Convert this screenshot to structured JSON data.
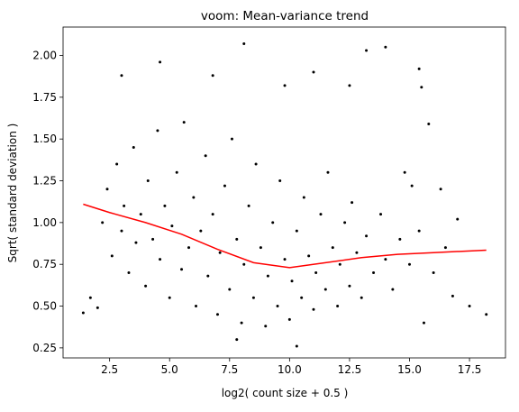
{
  "chart_data": {
    "type": "scatter",
    "title": "voom: Mean-variance trend",
    "x_label": "log2( count size + 0.5 )",
    "y_label": "Sqrt( standard deviation )",
    "xlim": [
      0.56,
      19.0
    ],
    "ylim": [
      0.19,
      2.17
    ],
    "xticks": [
      2.5,
      {
        "value": 5,
        "label": "5.0"
      },
      7.5,
      {
        "value": 10,
        "label": "10.0"
      },
      12.5,
      {
        "value": 15,
        "label": "15.0"
      },
      17.5
    ],
    "yticks": [
      {
        "value": 0.25,
        "label": "0.25"
      },
      {
        "value": 0.5,
        "label": "0.50"
      },
      {
        "value": 0.75,
        "label": "0.75"
      },
      {
        "value": 1,
        "label": "1.00"
      },
      {
        "value": 1.25,
        "label": "1.25"
      },
      {
        "value": 1.5,
        "label": "1.50"
      },
      {
        "value": 1.75,
        "label": "1.75"
      },
      {
        "value": 2,
        "label": "2.00"
      }
    ],
    "series": [
      {
        "mode": "markers",
        "color": "#000000",
        "x": [
          8.1,
          14.0,
          13.2,
          4.6,
          15.4,
          3.0,
          6.8,
          11.0,
          15.5,
          9.8,
          12.5,
          15.8,
          16.3,
          17.0,
          17.5,
          18.2,
          1.4,
          1.7,
          2.0,
          7.8,
          10.3,
          15.6,
          16.8,
          14.8,
          15.1,
          2.2,
          2.4,
          2.6,
          2.8,
          3.0,
          3.1,
          3.3,
          3.5,
          3.6,
          3.8,
          4.0,
          4.1,
          4.3,
          4.5,
          4.6,
          4.8,
          5.0,
          5.1,
          5.3,
          5.5,
          5.6,
          5.8,
          6.0,
          6.1,
          6.3,
          6.5,
          6.6,
          6.8,
          7.0,
          7.1,
          7.3,
          7.5,
          7.6,
          7.8,
          8.0,
          8.1,
          8.3,
          8.5,
          8.6,
          8.8,
          9.0,
          9.1,
          9.3,
          9.5,
          9.6,
          9.8,
          10.0,
          10.1,
          10.3,
          10.5,
          10.6,
          10.8,
          11.0,
          11.1,
          11.3,
          11.5,
          11.6,
          11.8,
          12.0,
          12.1,
          12.3,
          12.5,
          12.6,
          12.8,
          13.0,
          13.2,
          13.5,
          13.8,
          14.0,
          14.3,
          14.6,
          15.0,
          15.4,
          16.0,
          16.5
        ],
        "values": [
          2.07,
          2.05,
          2.03,
          1.96,
          1.92,
          1.88,
          1.88,
          1.9,
          1.81,
          1.82,
          1.82,
          1.59,
          1.2,
          1.02,
          0.5,
          0.45,
          0.46,
          0.55,
          0.49,
          0.3,
          0.26,
          0.4,
          0.56,
          1.3,
          1.22,
          1.0,
          1.2,
          0.8,
          1.35,
          0.95,
          1.1,
          0.7,
          1.45,
          0.88,
          1.05,
          0.62,
          1.25,
          0.9,
          1.55,
          0.78,
          1.1,
          0.55,
          0.98,
          1.3,
          0.72,
          1.6,
          0.85,
          1.15,
          0.5,
          0.95,
          1.4,
          0.68,
          1.05,
          0.45,
          0.82,
          1.22,
          0.6,
          1.5,
          0.9,
          0.4,
          0.75,
          1.1,
          0.55,
          1.35,
          0.85,
          0.38,
          0.68,
          1.0,
          0.5,
          1.25,
          0.78,
          0.42,
          0.65,
          0.95,
          0.55,
          1.15,
          0.8,
          0.48,
          0.7,
          1.05,
          0.6,
          1.3,
          0.85,
          0.5,
          0.75,
          1.0,
          0.62,
          1.12,
          0.82,
          0.55,
          0.92,
          0.7,
          1.05,
          0.78,
          0.6,
          0.9,
          0.75,
          0.95,
          0.7,
          0.85
        ]
      },
      {
        "mode": "line",
        "color": "#ff0000",
        "x": [
          1.4,
          2.5,
          4,
          5.5,
          7,
          8.5,
          10,
          11.5,
          13,
          14.5,
          16,
          18.2
        ],
        "values": [
          1.11,
          1.06,
          1.0,
          0.93,
          0.84,
          0.76,
          0.73,
          0.76,
          0.79,
          0.81,
          0.82,
          0.835
        ]
      }
    ]
  }
}
